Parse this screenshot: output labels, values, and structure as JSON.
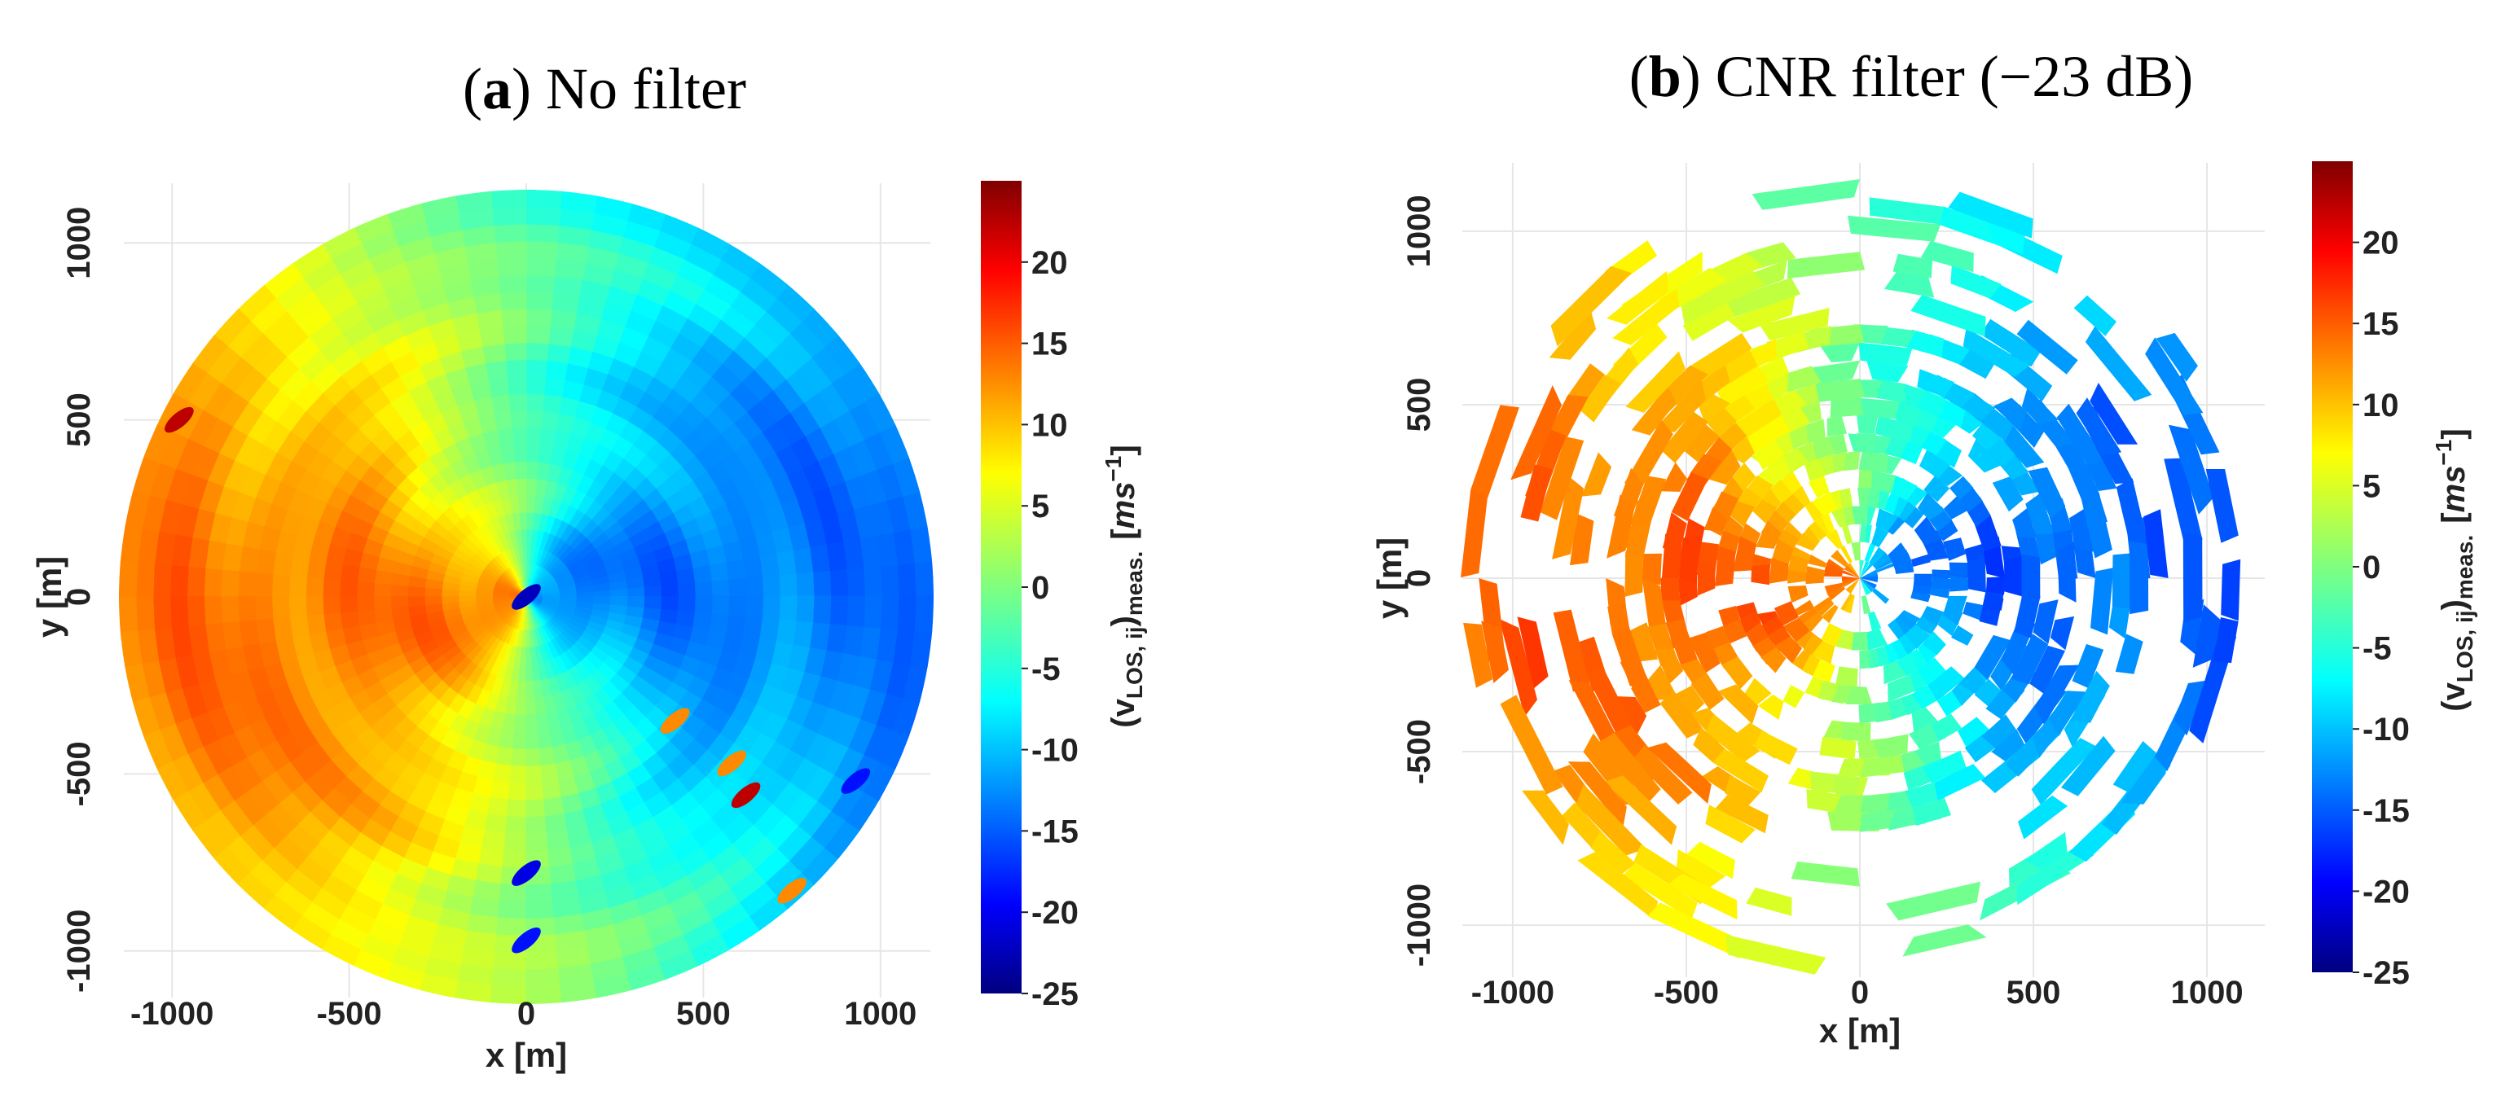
{
  "panels": {
    "a": {
      "letter": "a",
      "title_rest": "No filter",
      "title_open": "(",
      "title_close": ")",
      "chart_data": {
        "type": "heatmap",
        "plot_shape": "polar-disk",
        "title": "(a) No filter",
        "xlabel": "x [m]",
        "ylabel": "y [m]",
        "xlim": [
          -1150,
          1150
        ],
        "ylim": [
          -1150,
          1150
        ],
        "x_ticks": [
          -1000,
          -500,
          0,
          500,
          1000
        ],
        "y_ticks": [
          -1000,
          -500,
          0,
          500,
          1000
        ],
        "disk_radius_m": 1150,
        "grid": true,
        "field": {
          "description_model": "v = A*cos(theta - theta0) + offset, polar LOS velocity pattern",
          "amplitude": 13,
          "theta0_deg": 188,
          "offset": 0
        },
        "hotspots": [
          {
            "x": 420,
            "y": -350,
            "v": 12
          },
          {
            "x": 580,
            "y": -470,
            "v": 12
          },
          {
            "x": 620,
            "y": -560,
            "v": 22
          },
          {
            "x": 930,
            "y": -520,
            "v": -18
          },
          {
            "x": 750,
            "y": -830,
            "v": 12
          },
          {
            "x": 0,
            "y": -780,
            "v": -20
          },
          {
            "x": 0,
            "y": -970,
            "v": -18
          },
          {
            "x": -980,
            "y": 500,
            "v": 22
          },
          {
            "x": 0,
            "y": 0,
            "v": -22
          }
        ]
      },
      "colorbar": {
        "min": -25,
        "max": 25,
        "ticks": [
          20,
          15,
          10,
          5,
          0,
          -5,
          -10,
          -15,
          -20,
          -25
        ],
        "tick_labels": [
          "20",
          "15",
          "10",
          "5",
          "0",
          "-5",
          "-10",
          "-15",
          "-20",
          "-25"
        ],
        "label_main": "(v",
        "label_sub": "LOS, ij",
        "label_mid": ")",
        "label_sub2": "meas.",
        "label_units_open": "[",
        "label_units": "ms",
        "label_units_sup": "−1",
        "label_units_close": "]"
      }
    },
    "b": {
      "letter": "b",
      "title_rest": "CNR filter (−23 dB)",
      "title_open": "(",
      "title_close": ")",
      "chart_data": {
        "type": "heatmap",
        "plot_shape": "polar-disk-filtered",
        "title": "(b) CNR filter (−23 dB)",
        "xlabel": "x [m]",
        "ylabel": "y [m]",
        "xlim": [
          -1150,
          1150
        ],
        "ylim": [
          -1150,
          1150
        ],
        "x_ticks": [
          -1000,
          -500,
          0,
          500,
          1000
        ],
        "y_ticks": [
          -1000,
          -500,
          0,
          500,
          1000
        ],
        "filter_threshold_dB": -23,
        "grid": true,
        "field": {
          "description_model": "same LOS pattern, sparse cells retained after CNR filtering",
          "amplitude": 14,
          "theta0_deg": 185,
          "offset": 0
        }
      },
      "colorbar": {
        "min": -25,
        "max": 25,
        "ticks": [
          20,
          15,
          10,
          5,
          0,
          -5,
          -10,
          -15,
          -20,
          -25
        ],
        "tick_labels": [
          "20",
          "15",
          "10",
          "5",
          "0",
          "-5",
          "-10",
          "-15",
          "-20",
          "-25"
        ],
        "label_main": "(v",
        "label_sub": "LOS, ij",
        "label_mid": ")",
        "label_sub2": "meas.",
        "label_units_open": "[",
        "label_units": "ms",
        "label_units_sup": "−1",
        "label_units_close": "]"
      }
    }
  },
  "colormap": [
    "#00007f",
    "#0000ff",
    "#007fff",
    "#00ffff",
    "#7fff7f",
    "#ffff00",
    "#ff7f00",
    "#ff0000",
    "#7f0000"
  ]
}
